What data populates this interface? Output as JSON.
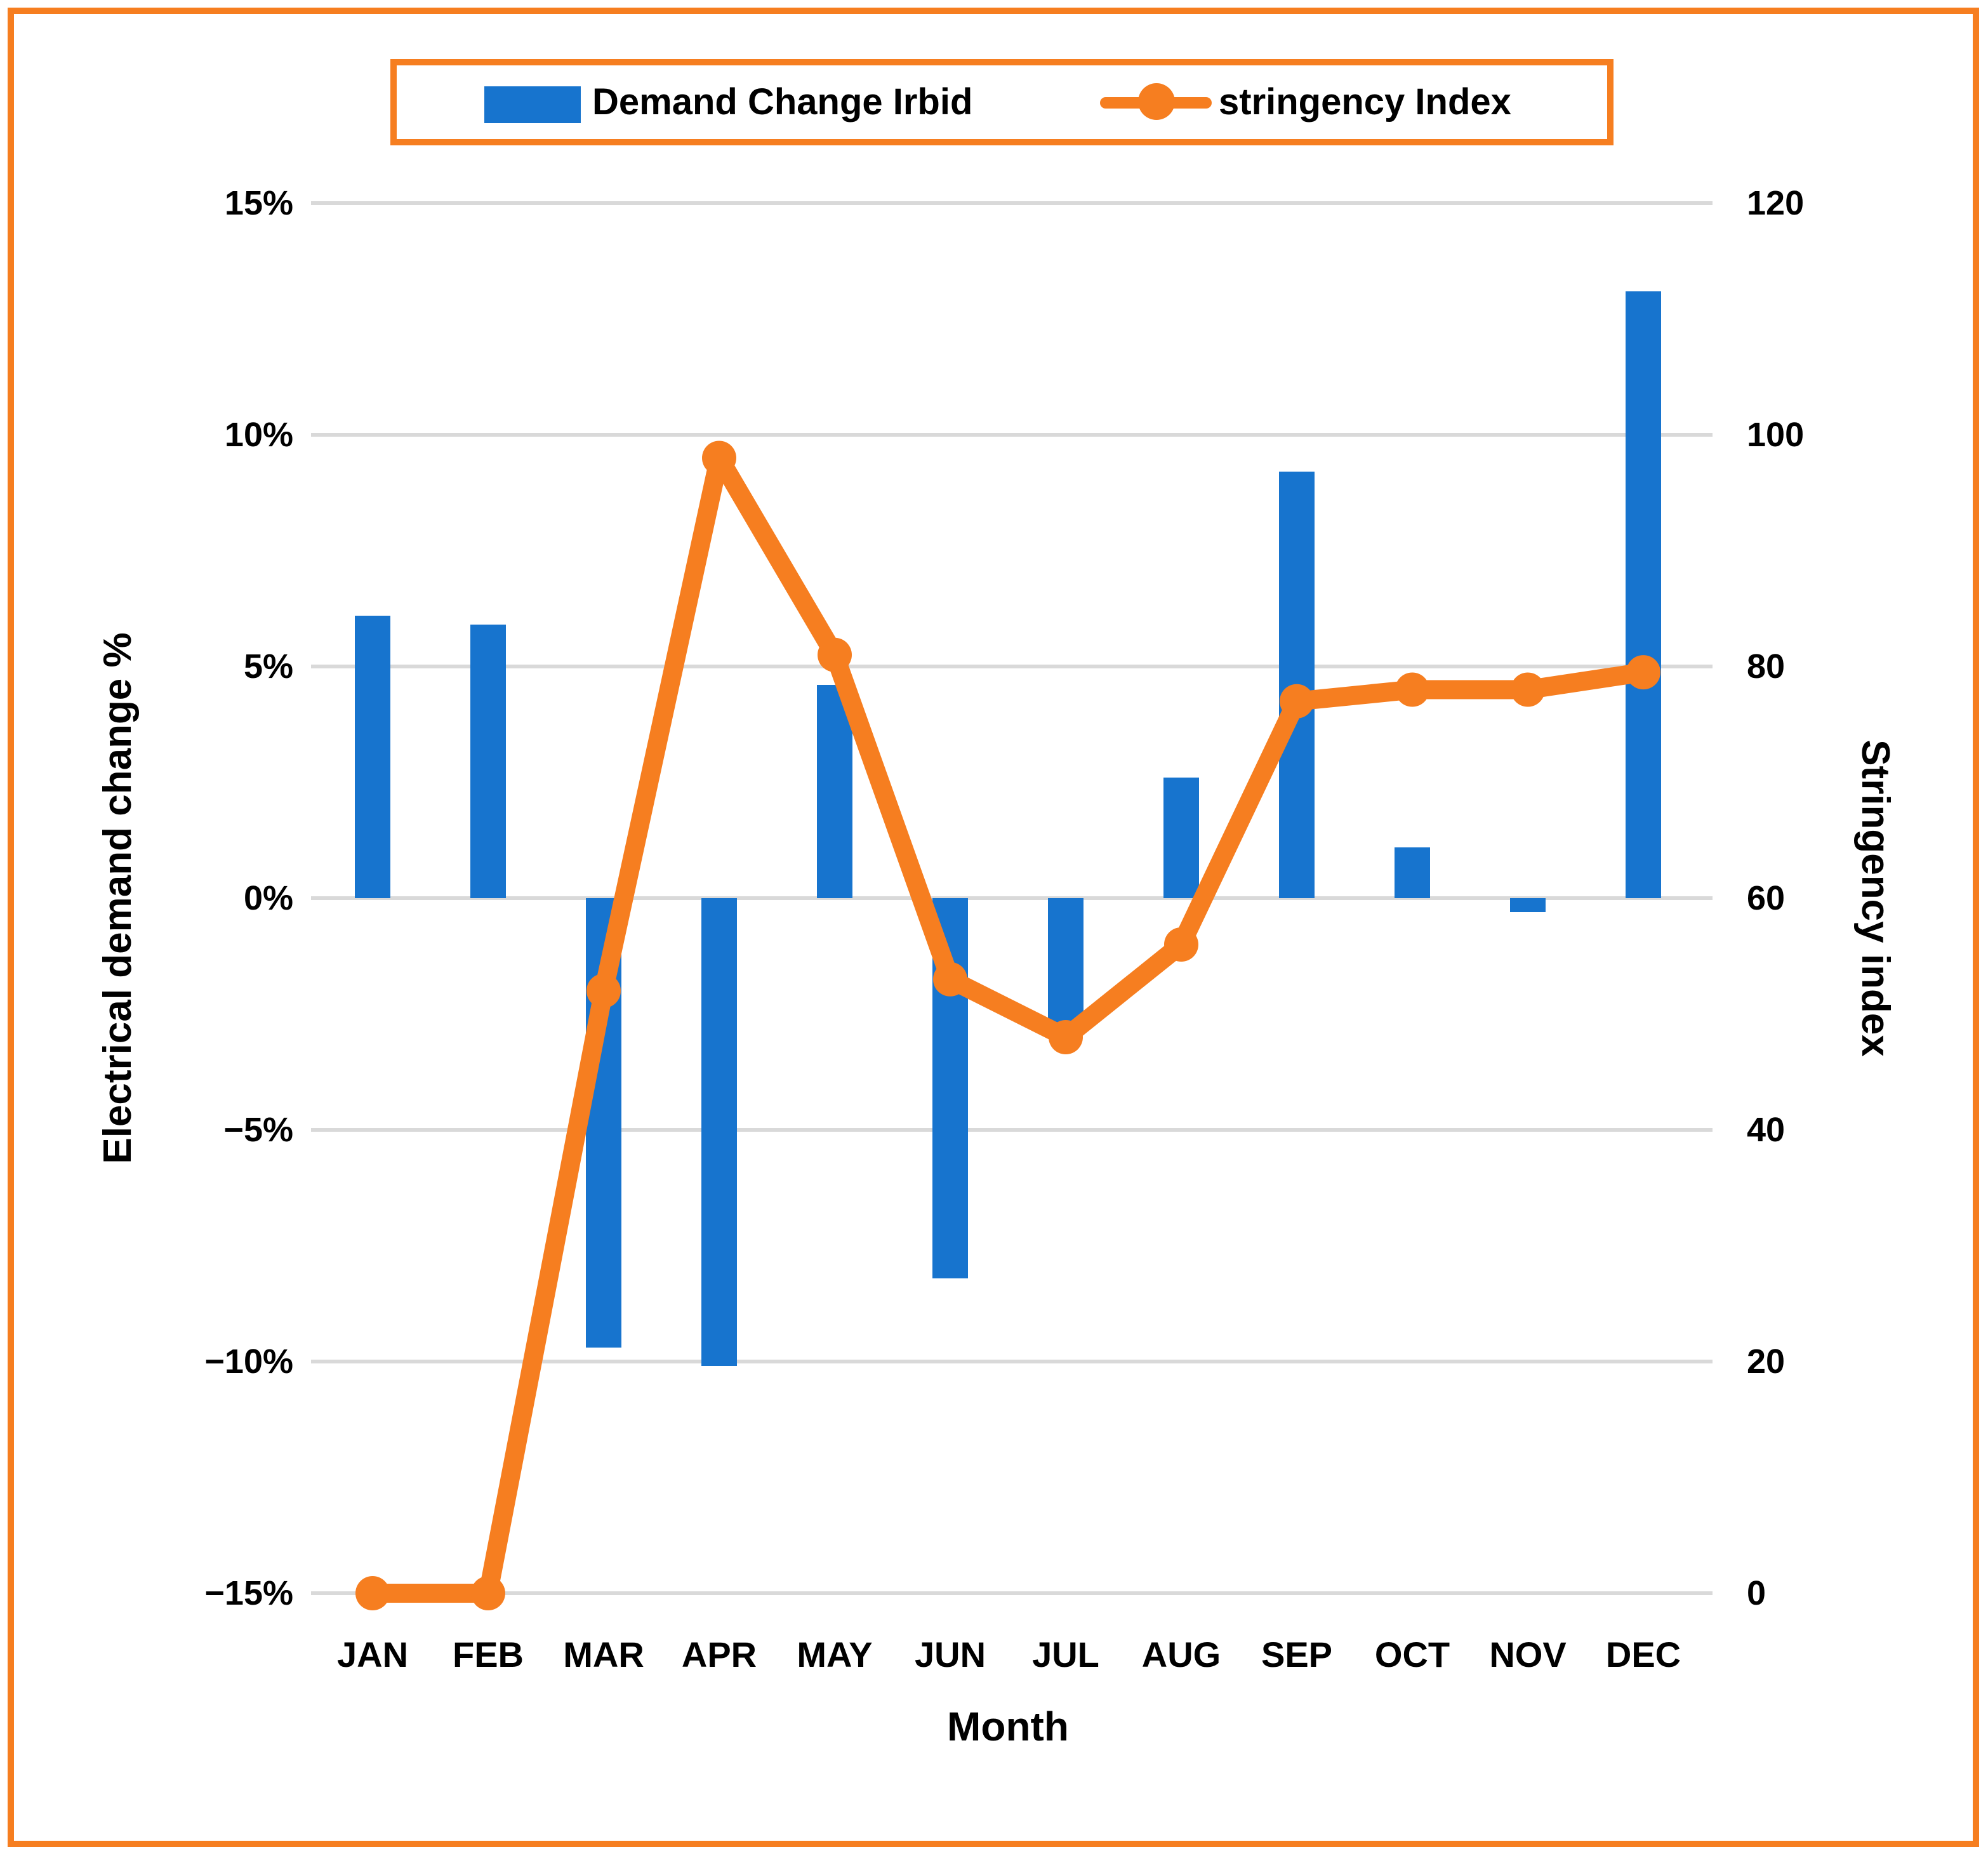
{
  "colors": {
    "accent_orange": "#F67E20",
    "bar_blue": "#1774CE",
    "gridline_gray": "#D9D9D9",
    "text_black": "#000000",
    "background": "#FFFFFF"
  },
  "legend": {
    "position": "top-center",
    "entries": [
      {
        "label": "Demand Change Irbid",
        "swatch": "blue-bar-swatch"
      },
      {
        "label": "stringency Index",
        "swatch": "orange-line-marker-swatch"
      }
    ]
  },
  "chart_data": {
    "type": "combo-bar-line",
    "title": "",
    "categories": [
      "JAN",
      "FEB",
      "MAR",
      "APR",
      "MAY",
      "JUN",
      "JUL",
      "AUG",
      "SEP",
      "OCT",
      "NOV",
      "DEC"
    ],
    "series": [
      {
        "name": "Demand Change Irbid",
        "type": "bar",
        "axis": "left",
        "unit": "%",
        "values": [
          6.1,
          5.9,
          -9.7,
          -10.1,
          4.6,
          -8.2,
          -2.7,
          2.6,
          9.2,
          1.1,
          -0.3,
          13.1
        ]
      },
      {
        "name": "stringency Index",
        "type": "line",
        "axis": "right",
        "marker": "circle",
        "values": [
          0,
          0,
          52,
          98,
          81,
          53,
          48,
          56,
          77,
          78,
          78,
          79.5
        ]
      }
    ],
    "left_axis": {
      "label": "Electrical demand change %",
      "min": -15,
      "max": 15,
      "tick_labels": [
        "15%",
        "10%",
        "5%",
        "0%",
        "−5%",
        "−10%",
        "−15%"
      ],
      "tick_values": [
        15,
        10,
        5,
        0,
        -5,
        -10,
        -15
      ]
    },
    "right_axis": {
      "label": "Stringency index",
      "min": 0,
      "max": 120,
      "tick_labels": [
        "120",
        "100",
        "80",
        "60",
        "40",
        "20",
        "0"
      ],
      "tick_values": [
        120,
        100,
        80,
        60,
        40,
        20,
        0
      ]
    },
    "x_axis": {
      "label": "Month"
    },
    "grid": "horizontal-only",
    "legend_position": "top"
  }
}
